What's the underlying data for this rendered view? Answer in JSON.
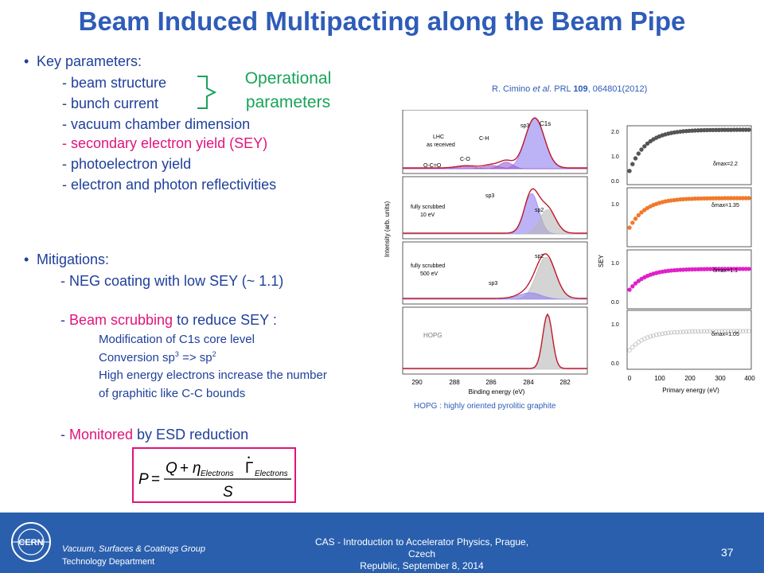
{
  "title": "Beam Induced Multipacting along the Beam Pipe",
  "key_params": {
    "bullet": "•",
    "heading": "Key parameters:",
    "items": [
      "- beam structure",
      "- bunch current",
      "- vacuum chamber dimension",
      "- secondary electron yield (SEY)",
      "- photoelectron yield",
      "- electron and photon reflectivities"
    ],
    "operational_label": [
      "Operational",
      "parameters"
    ]
  },
  "mitigations": {
    "bullet": "•",
    "heading": "Mitigations:",
    "neg": "- NEG coating with low SEY (~ 1.1)",
    "scrub_dash": "- ",
    "scrub_pink": "Beam scrubbing",
    "scrub_rest": " to reduce SEY :",
    "sub1": "Modification of C1s core level",
    "sub2_a": "Conversion sp",
    "sub2_sup1": "3",
    "sub2_b": " => sp",
    "sub2_sup2": "2",
    "sub3": "High energy electrons increase the number",
    "sub4": "of graphitic like C-C bounds",
    "mon_dash": "- ",
    "mon_pink": "Monitored",
    "mon_rest": " by ESD reduction"
  },
  "formula": {
    "P": "P",
    "eq": "=",
    "Q": "Q",
    "plus": "+",
    "eta": "η",
    "eta_sub": "Electrons",
    "gamma": "Γ",
    "gamma_sub": "Electrons",
    "dot": "•",
    "S": "S"
  },
  "reference": {
    "authors": "R. Cimino ",
    "etal": "et al",
    "journal": ". PRL ",
    "volume": "109",
    "rest": ", 064801(2012)"
  },
  "xps_figure": {
    "ylabel": "Intensity (arb. units)",
    "xlabel": "Binding energy (eV)",
    "xticks": [
      "290",
      "288",
      "286",
      "284",
      "282"
    ],
    "panel1": {
      "labels": [
        "LHC",
        "as received",
        "O-C=O",
        "C-O",
        "C-H",
        "sp3",
        "C1s"
      ]
    },
    "panel2": {
      "labels": [
        "fully scrubbed",
        "10 eV",
        "sp3",
        "sp2"
      ]
    },
    "panel3": {
      "labels": [
        "fully scrubbed",
        "500 eV",
        "sp2",
        "sp3"
      ]
    },
    "panel4": {
      "labels": [
        "HOPG"
      ]
    },
    "colors": {
      "fit": "#c0182c",
      "sp3": "#8f7ff0",
      "sp2": "#b8b8b8",
      "minor": "#9b5ccf"
    }
  },
  "sey_figure": {
    "ylabel": "SEY",
    "xlabel": "Primary energy (eV)",
    "xticks": [
      "0",
      "100",
      "200",
      "300",
      "400"
    ],
    "panels": [
      {
        "yticks": [
          "0.0",
          "1.0",
          "2.0"
        ],
        "delta_label": "δmax=2.2",
        "delta_max": 2.2,
        "color": "#555555"
      },
      {
        "yticks": [
          "1.0"
        ],
        "delta_label": "δmax=1.35",
        "delta_max": 1.35,
        "color": "#f07a2a"
      },
      {
        "yticks": [
          "0.0",
          "1.0"
        ],
        "delta_label": "δmax=1.1",
        "delta_max": 1.1,
        "color": "#e020c8"
      },
      {
        "yticks": [
          "0.0",
          "1.0"
        ],
        "delta_label": "δmax=1.05",
        "delta_max": 1.05,
        "color": "#bbbbbb"
      }
    ]
  },
  "hopg_note": "HOPG : highly oriented pyrolitic graphite",
  "footer": {
    "group": "Vacuum, Surfaces & Coatings Group",
    "dept": "Technology Department",
    "event_line1": "CAS - Introduction to Accelerator Physics, Prague, Czech",
    "event_line2": "Republic, September 8, 2014",
    "page": "37",
    "logo_text": "CERN"
  }
}
